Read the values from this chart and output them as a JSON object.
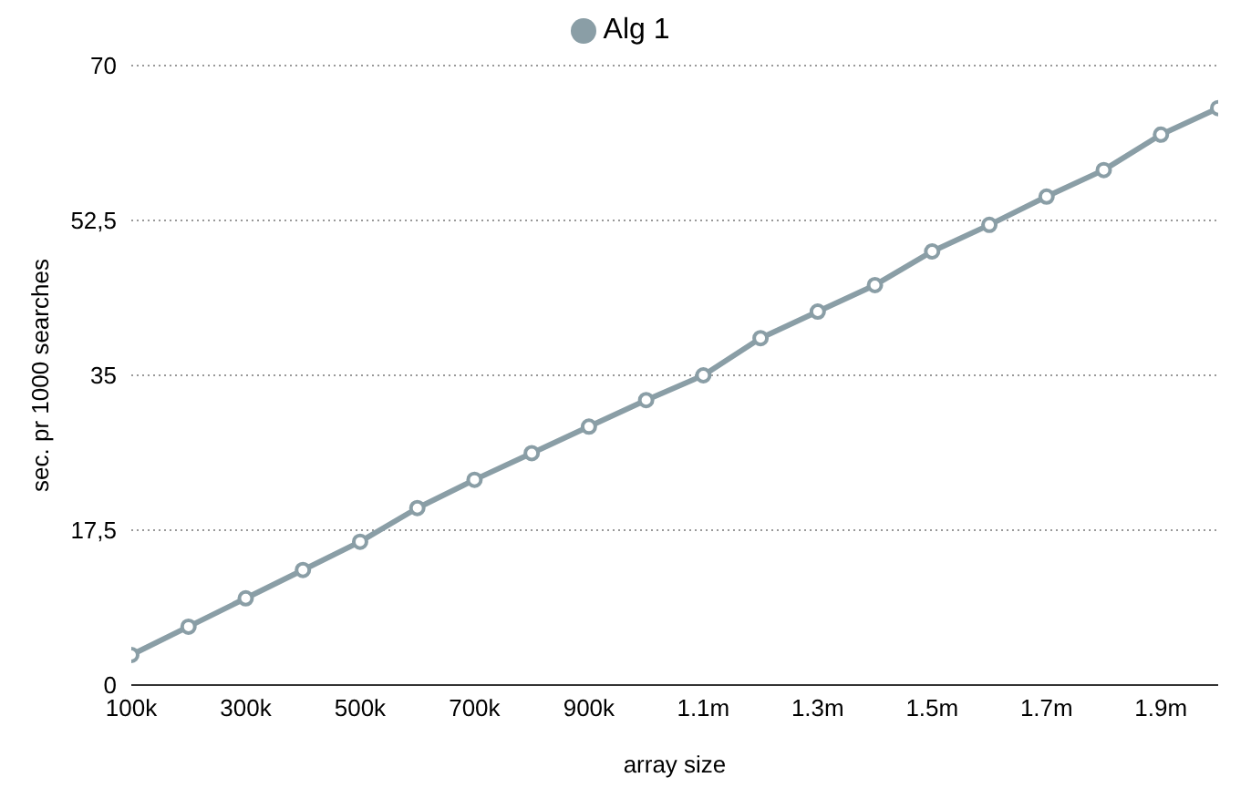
{
  "chart_data": {
    "type": "line",
    "xlabel": "array size",
    "ylabel": "sec. pr 1000 searches",
    "x": [
      100000,
      200000,
      300000,
      400000,
      500000,
      600000,
      700000,
      800000,
      900000,
      1000000,
      1100000,
      1200000,
      1300000,
      1400000,
      1500000,
      1600000,
      1700000,
      1800000,
      1900000,
      2000000
    ],
    "series": [
      {
        "name": "Alg 1",
        "color": "#8a9ea6",
        "values": [
          3.4,
          6.6,
          9.8,
          13,
          16.2,
          20,
          23.2,
          26.2,
          29.2,
          32.2,
          35,
          39.2,
          42.2,
          45.2,
          49,
          52,
          55.2,
          58.2,
          62.2,
          65.2
        ]
      }
    ],
    "xlim": [
      100000,
      2000000
    ],
    "xticks": [
      {
        "value": 100000,
        "label": "100k"
      },
      {
        "value": 300000,
        "label": "300k"
      },
      {
        "value": 500000,
        "label": "500k"
      },
      {
        "value": 700000,
        "label": "700k"
      },
      {
        "value": 900000,
        "label": "900k"
      },
      {
        "value": 1100000,
        "label": "1.1m"
      },
      {
        "value": 1300000,
        "label": "1.3m"
      },
      {
        "value": 1500000,
        "label": "1.5m"
      },
      {
        "value": 1700000,
        "label": "1.7m"
      },
      {
        "value": 1900000,
        "label": "1.9m"
      }
    ],
    "ylim": [
      0,
      70
    ],
    "yticks": [
      0,
      {
        "value": 17.5,
        "label": "17,5"
      },
      35,
      {
        "value": 52.5,
        "label": "52,5"
      },
      70
    ],
    "grid": "y",
    "legend": "top",
    "marker": "circle",
    "line_style": "solid"
  }
}
